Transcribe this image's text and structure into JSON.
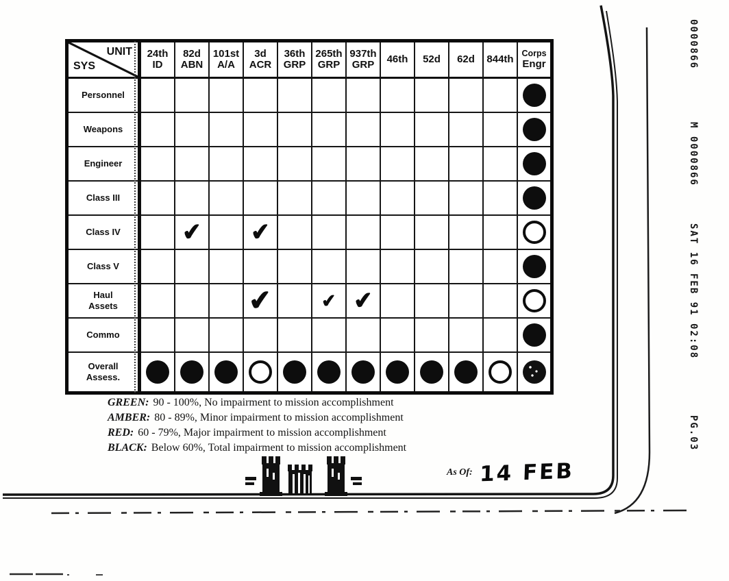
{
  "table": {
    "corner": {
      "top": "UNIT",
      "bottom": "SYS"
    },
    "columns": [
      {
        "l1": "24th",
        "l2": "ID"
      },
      {
        "l1": "82d",
        "l2": "ABN"
      },
      {
        "l1": "101st",
        "l2": "A/A"
      },
      {
        "l1": "3d",
        "l2": "ACR"
      },
      {
        "l1": "36th",
        "l2": "GRP"
      },
      {
        "l1": "265th",
        "l2": "GRP"
      },
      {
        "l1": "937th",
        "l2": "GRP"
      },
      {
        "l1": "46th",
        "l2": ""
      },
      {
        "l1": "52d",
        "l2": ""
      },
      {
        "l1": "62d",
        "l2": ""
      },
      {
        "l1": "844th",
        "l2": ""
      },
      {
        "l1": "Corps",
        "l2": "Engr"
      }
    ],
    "rows": [
      {
        "label": "Personnel",
        "cells": [
          "",
          "",
          "",
          "",
          "",
          "",
          "",
          "",
          "",
          "",
          "",
          "black"
        ]
      },
      {
        "label": "Weapons",
        "cells": [
          "",
          "",
          "",
          "",
          "",
          "",
          "",
          "",
          "",
          "",
          "",
          "black"
        ]
      },
      {
        "label": "Engineer",
        "cells": [
          "",
          "",
          "",
          "",
          "",
          "",
          "",
          "",
          "",
          "",
          "",
          "black"
        ]
      },
      {
        "label": "Class III",
        "cells": [
          "",
          "",
          "",
          "",
          "",
          "",
          "",
          "",
          "",
          "",
          "",
          "black"
        ]
      },
      {
        "label": "Class IV",
        "cells": [
          "",
          "check",
          "",
          "check",
          "",
          "",
          "",
          "",
          "",
          "",
          "",
          "open"
        ]
      },
      {
        "label": "Class V",
        "cells": [
          "",
          "",
          "",
          "",
          "",
          "",
          "",
          "",
          "",
          "",
          "",
          "black"
        ]
      },
      {
        "label": "Haul\nAssets",
        "cells": [
          "",
          "",
          "",
          "check-lg",
          "",
          "check-sm",
          "check",
          "",
          "",
          "",
          "",
          "open"
        ]
      },
      {
        "label": "Commo",
        "cells": [
          "",
          "",
          "",
          "",
          "",
          "",
          "",
          "",
          "",
          "",
          "",
          "black"
        ]
      },
      {
        "label": "Overall\nAssess.",
        "cells": [
          "black",
          "black",
          "black",
          "open",
          "black",
          "black",
          "black",
          "black",
          "black",
          "black",
          "open",
          "speck"
        ]
      }
    ]
  },
  "legend": [
    {
      "key": "GREEN:",
      "text": "90 - 100%, No impairment to mission accomplishment"
    },
    {
      "key": "AMBER:",
      "text": "80 - 89%, Minor impairment to mission accomplishment"
    },
    {
      "key": "RED:",
      "text": "60 - 79%, Major impairment to mission accomplishment"
    },
    {
      "key": "BLACK:",
      "text": "Below 60%, Total impairment to mission accomplishment"
    }
  ],
  "as_of": {
    "label": "As Of:",
    "value": "14 FEB"
  },
  "fax_marks": [
    "0000866",
    "M 0000866",
    "SAT 16 FEB 91 02:08",
    "PG.03"
  ],
  "icons": {
    "castle": "corps-of-engineers-castle-icon"
  },
  "colors": {
    "ink": "#0d0d0d",
    "paper": "#fefefd"
  }
}
